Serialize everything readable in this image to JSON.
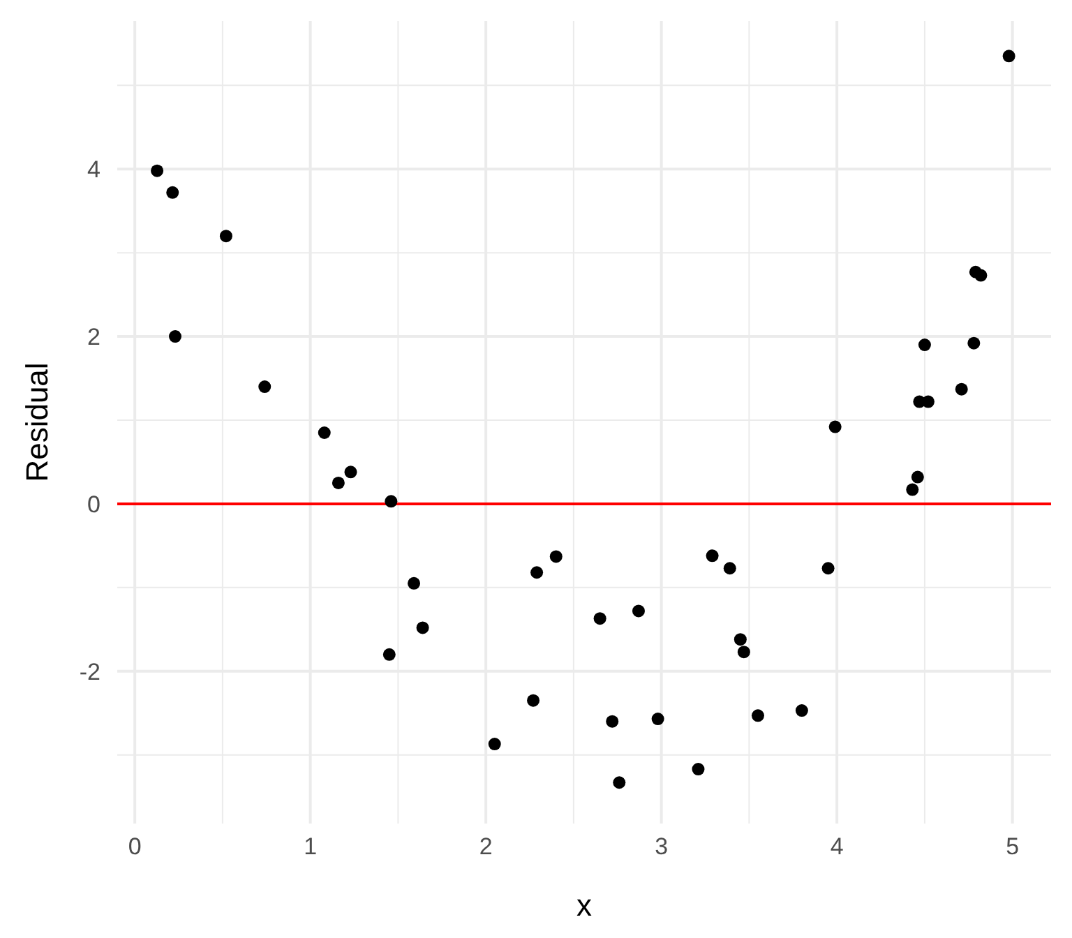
{
  "chart_data": {
    "type": "scatter",
    "xlabel": "x",
    "ylabel": "Residual",
    "xlim": [
      -0.1,
      5.22
    ],
    "ylim": [
      -3.82,
      5.77
    ],
    "xticks": [
      0,
      {
        "value": 0.5,
        "label": null
      },
      1,
      {
        "value": 1.5,
        "label": null
      },
      2,
      {
        "value": 2.5,
        "label": null
      },
      3,
      {
        "value": 3.5,
        "label": null
      },
      4,
      {
        "value": 4.5,
        "label": null
      },
      5
    ],
    "yticks": [
      {
        "value": -3,
        "label": null
      },
      -2,
      {
        "value": -1,
        "label": null
      },
      0,
      {
        "value": 1,
        "label": null
      },
      2,
      {
        "value": 3,
        "label": null
      },
      4,
      {
        "value": 5,
        "label": null
      }
    ],
    "grid": true,
    "marker": "circle",
    "series": [
      {
        "color": "#000000",
        "x": [
          0.127,
          0.215,
          0.23,
          0.52,
          0.74,
          1.08,
          1.16,
          1.23,
          1.46,
          1.45,
          1.59,
          1.64,
          2.05,
          2.27,
          2.29,
          2.4,
          2.65,
          2.87,
          2.72,
          2.76,
          2.98,
          3.21,
          3.29,
          3.39,
          3.45,
          3.47,
          3.55,
          3.8,
          3.95,
          3.99,
          4.43,
          4.46,
          4.47,
          4.52,
          4.5,
          4.71,
          4.78,
          4.79,
          4.82,
          4.98
        ],
        "values": [
          3.98,
          3.72,
          2.0,
          3.2,
          1.4,
          0.85,
          0.25,
          0.38,
          0.03,
          -1.8,
          -0.95,
          -1.48,
          -2.87,
          -2.35,
          -0.82,
          -0.63,
          -1.37,
          -1.28,
          -2.6,
          -3.33,
          -2.57,
          -3.17,
          -0.62,
          -0.77,
          -1.62,
          -1.77,
          -2.53,
          -2.47,
          -0.77,
          0.92,
          0.17,
          0.32,
          1.22,
          1.22,
          1.9,
          1.37,
          1.92,
          2.77,
          2.73,
          5.35
        ]
      }
    ],
    "ref_lines": [
      {
        "axis": "y",
        "value": 0,
        "color": "#ff0000",
        "line_style": "solid"
      }
    ]
  }
}
